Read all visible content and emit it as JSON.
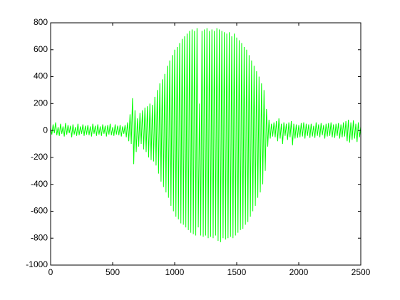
{
  "chart_data": {
    "type": "line",
    "x": [
      0,
      10,
      20,
      30,
      40,
      50,
      60,
      70,
      80,
      90,
      100,
      110,
      120,
      130,
      140,
      150,
      160,
      170,
      180,
      190,
      200,
      210,
      220,
      230,
      240,
      250,
      260,
      270,
      280,
      290,
      300,
      310,
      320,
      330,
      340,
      350,
      360,
      370,
      380,
      390,
      400,
      410,
      420,
      430,
      440,
      450,
      460,
      470,
      480,
      490,
      500,
      510,
      520,
      530,
      540,
      550,
      560,
      570,
      580,
      590,
      600,
      610,
      620,
      630,
      640,
      650,
      660,
      670,
      680,
      690,
      700,
      710,
      720,
      730,
      740,
      750,
      760,
      770,
      780,
      790,
      800,
      810,
      820,
      830,
      840,
      850,
      860,
      870,
      880,
      890,
      900,
      910,
      920,
      930,
      940,
      950,
      960,
      970,
      980,
      990,
      1000,
      1010,
      1020,
      1030,
      1040,
      1050,
      1060,
      1070,
      1080,
      1090,
      1100,
      1110,
      1120,
      1130,
      1140,
      1150,
      1160,
      1170,
      1180,
      1190,
      1200,
      1210,
      1220,
      1230,
      1240,
      1250,
      1260,
      1270,
      1280,
      1290,
      1300,
      1310,
      1320,
      1330,
      1340,
      1350,
      1360,
      1370,
      1380,
      1390,
      1400,
      1410,
      1420,
      1430,
      1440,
      1450,
      1460,
      1470,
      1480,
      1490,
      1500,
      1510,
      1520,
      1530,
      1540,
      1550,
      1560,
      1570,
      1580,
      1590,
      1600,
      1610,
      1620,
      1630,
      1640,
      1650,
      1660,
      1670,
      1680,
      1690,
      1700,
      1710,
      1720,
      1730,
      1740,
      1750,
      1760,
      1770,
      1780,
      1790,
      1800,
      1810,
      1820,
      1830,
      1840,
      1850,
      1860,
      1870,
      1880,
      1890,
      1900,
      1910,
      1920,
      1930,
      1940,
      1950,
      1960,
      1970,
      1980,
      1990,
      2000,
      2010,
      2020,
      2030,
      2040,
      2050,
      2060,
      2070,
      2080,
      2090,
      2100,
      2110,
      2120,
      2130,
      2140,
      2150,
      2160,
      2170,
      2180,
      2190,
      2200,
      2210,
      2220,
      2230,
      2240,
      2250,
      2260,
      2270,
      2280,
      2290,
      2300,
      2310,
      2320,
      2330,
      2340,
      2350,
      2360,
      2370,
      2380,
      2390,
      2400,
      2410,
      2420,
      2430,
      2440,
      2450,
      2460,
      2470,
      2480,
      2490,
      2500
    ],
    "series": [
      {
        "color": "#00ff00",
        "values": [
          20,
          -30,
          45,
          -20,
          60,
          -35,
          25,
          -40,
          50,
          -25,
          30,
          -45,
          55,
          -30,
          40,
          -20,
          35,
          -50,
          45,
          -30,
          25,
          -40,
          50,
          -35,
          30,
          -25,
          45,
          -40,
          35,
          -30,
          40,
          -35,
          30,
          -45,
          50,
          -25,
          35,
          -40,
          45,
          -30,
          30,
          -40,
          45,
          -25,
          35,
          -45,
          40,
          -30,
          50,
          -35,
          25,
          -40,
          45,
          -30,
          35,
          -35,
          40,
          -45,
          30,
          -25,
          40,
          -50,
          60,
          -80,
          120,
          -100,
          240,
          -250,
          150,
          -160,
          90,
          -120,
          130,
          -100,
          150,
          -140,
          170,
          -160,
          180,
          -200,
          200,
          -220,
          190,
          -230,
          250,
          -260,
          300,
          -320,
          350,
          -380,
          380,
          -420,
          420,
          -460,
          480,
          -500,
          520,
          -560,
          560,
          -600,
          600,
          -640,
          620,
          -660,
          650,
          -690,
          680,
          -700,
          700,
          -720,
          720,
          -740,
          740,
          -760,
          750,
          -770,
          740,
          -780,
          760,
          -720,
          200,
          -780,
          740,
          -790,
          750,
          -780,
          760,
          -800,
          740,
          -790,
          750,
          -800,
          740,
          -780,
          760,
          -820,
          750,
          -830,
          740,
          -800,
          730,
          -810,
          720,
          -800,
          730,
          -790,
          700,
          -800,
          720,
          -780,
          690,
          -760,
          670,
          -740,
          650,
          -730,
          620,
          -700,
          600,
          -680,
          560,
          -640,
          520,
          -600,
          480,
          -560,
          440,
          -500,
          400,
          -460,
          350,
          -400,
          300,
          -300,
          160,
          -120,
          80,
          -60,
          50,
          -45,
          60,
          -50,
          70,
          -80,
          90,
          -60,
          50,
          -100,
          60,
          -40,
          50,
          -70,
          60,
          -50,
          70,
          -110,
          50,
          -60,
          45,
          -55,
          40,
          -50,
          55,
          -45,
          60,
          -60,
          50,
          -40,
          45,
          -55,
          50,
          -45,
          35,
          -55,
          60,
          -40,
          45,
          -50,
          55,
          -35,
          40,
          -60,
          50,
          -45,
          55,
          -40,
          60,
          -50,
          45,
          -55,
          50,
          -40,
          55,
          -60,
          45,
          -50,
          60,
          -45,
          70,
          -80,
          80,
          -90,
          60,
          -70,
          75,
          -60,
          50,
          -85,
          60,
          -50,
          30
        ]
      }
    ],
    "xlim": [
      0,
      2500
    ],
    "ylim": [
      -1000,
      800
    ],
    "xticks": [
      0,
      500,
      1000,
      1500,
      2000,
      2500
    ],
    "yticks": [
      -1000,
      -800,
      -600,
      -400,
      -200,
      0,
      200,
      400,
      600,
      800
    ]
  }
}
